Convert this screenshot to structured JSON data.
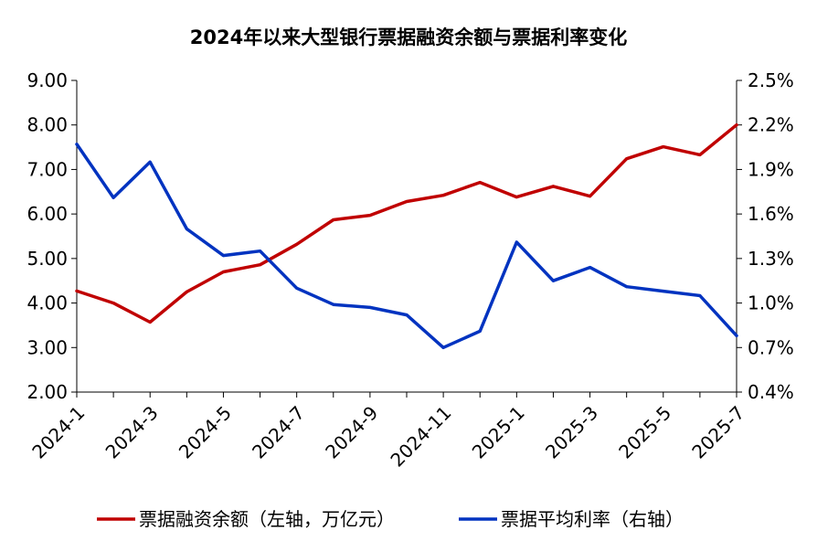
{
  "chart_data": {
    "type": "line",
    "title": "2024年以来大型银行票据融资余额与票据利率变化",
    "x": [
      "2024-1",
      "2024-2",
      "2024-3",
      "2024-4",
      "2024-5",
      "2024-6",
      "2024-7",
      "2024-8",
      "2024-9",
      "2024-10",
      "2024-11",
      "2024-12",
      "2025-1",
      "2025-2",
      "2025-3",
      "2025-4",
      "2025-5",
      "2025-6",
      "2025-7"
    ],
    "x_tick_labels": [
      "2024-1",
      "2024-3",
      "2024-5",
      "2024-7",
      "2024-9",
      "2024-11",
      "2025-1",
      "2025-3",
      "2025-5",
      "2025-7"
    ],
    "y_left": {
      "range": [
        2.0,
        9.0
      ],
      "ticks": [
        "2.00",
        "3.00",
        "4.00",
        "5.00",
        "6.00",
        "7.00",
        "8.00",
        "9.00"
      ]
    },
    "y_right": {
      "range": [
        0.4,
        2.5
      ],
      "unit": "%",
      "ticks": [
        "0.4%",
        "0.7%",
        "1.0%",
        "1.3%",
        "1.6%",
        "1.9%",
        "2.2%",
        "2.5%"
      ]
    },
    "series": [
      {
        "name": "票据融资余额（左轴，万亿元）",
        "axis": "left",
        "color": "#c00000",
        "values": [
          4.27,
          4.0,
          3.57,
          4.25,
          4.7,
          4.86,
          5.32,
          5.87,
          5.97,
          6.28,
          6.42,
          6.71,
          6.38,
          6.62,
          6.4,
          7.24,
          7.51,
          7.33,
          8.0
        ]
      },
      {
        "name": "票据平均利率（右轴）",
        "axis": "right",
        "color": "#0033c0",
        "values": [
          2.07,
          1.71,
          1.95,
          1.5,
          1.32,
          1.35,
          1.1,
          0.99,
          0.97,
          0.92,
          0.7,
          0.81,
          1.41,
          1.15,
          1.24,
          1.11,
          1.08,
          1.05,
          0.78
        ]
      }
    ],
    "grid": false,
    "legend": "bottom"
  }
}
